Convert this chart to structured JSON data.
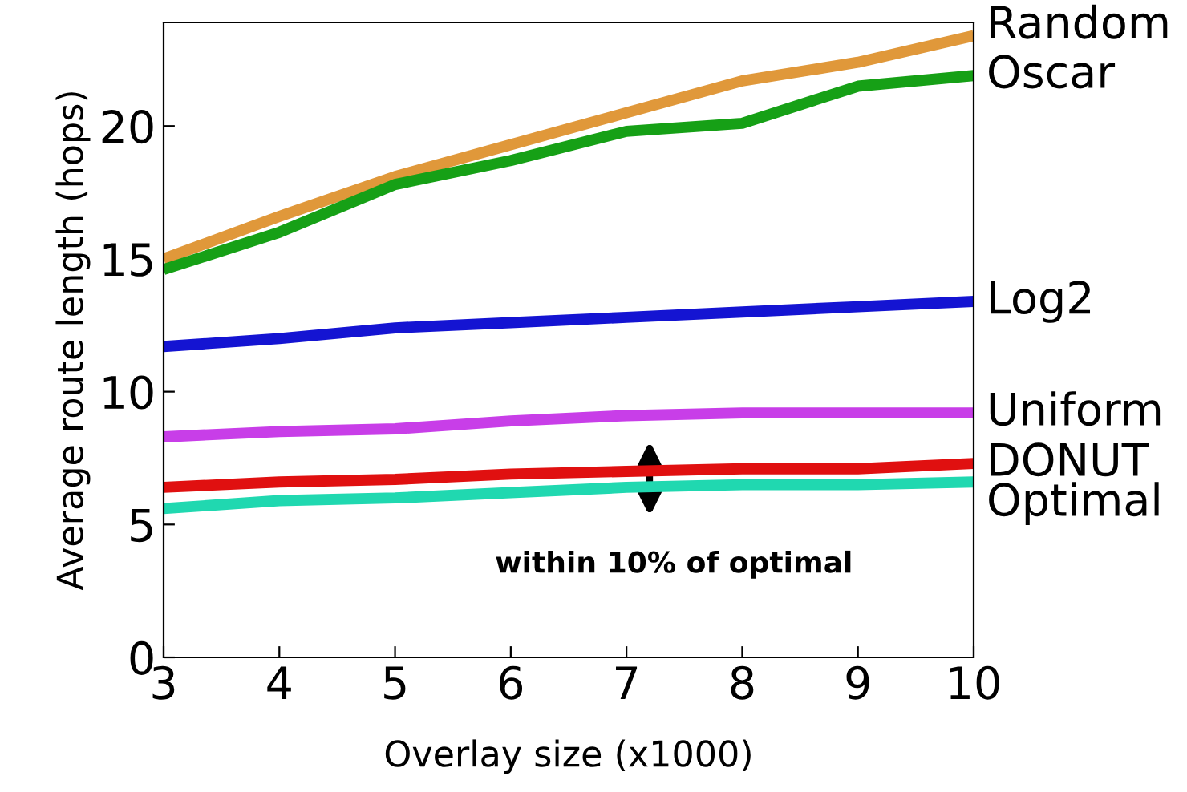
{
  "chart_data": {
    "type": "line",
    "xlabel": "Overlay size (x1000)",
    "ylabel": "Average route length (hops)",
    "x": [
      3,
      4,
      5,
      6,
      7,
      8,
      9,
      10
    ],
    "series": [
      {
        "name": "Random",
        "color": "#e0983a",
        "values": [
          15.0,
          16.6,
          18.1,
          19.3,
          20.5,
          21.7,
          22.4,
          23.4
        ]
      },
      {
        "name": "Oscar",
        "color": "#16a016",
        "values": [
          14.6,
          16.0,
          17.8,
          18.7,
          19.8,
          20.1,
          21.5,
          21.9
        ]
      },
      {
        "name": "Log2",
        "color": "#1414d2",
        "values": [
          11.7,
          12.0,
          12.4,
          12.6,
          12.8,
          13.0,
          13.2,
          13.4
        ]
      },
      {
        "name": "Uniform",
        "color": "#c83ee8",
        "values": [
          8.3,
          8.5,
          8.6,
          8.9,
          9.1,
          9.2,
          9.2,
          9.2
        ]
      },
      {
        "name": "DONUT",
        "color": "#e01010",
        "values": [
          6.4,
          6.6,
          6.7,
          6.9,
          7.0,
          7.1,
          7.1,
          7.3
        ]
      },
      {
        "name": "Optimal",
        "color": "#20d8b0",
        "values": [
          5.6,
          5.9,
          6.0,
          6.2,
          6.4,
          6.5,
          6.5,
          6.6
        ]
      }
    ],
    "xlim": [
      3,
      10
    ],
    "ylim": [
      0,
      23.9
    ],
    "xticks": [
      3,
      4,
      5,
      6,
      7,
      8,
      9,
      10
    ],
    "yticks": [
      0,
      5,
      10,
      15,
      20
    ],
    "grid": false,
    "legend": false,
    "marker": "none",
    "line_style": "solid",
    "annotations": [
      "within 10% of optimal"
    ]
  }
}
